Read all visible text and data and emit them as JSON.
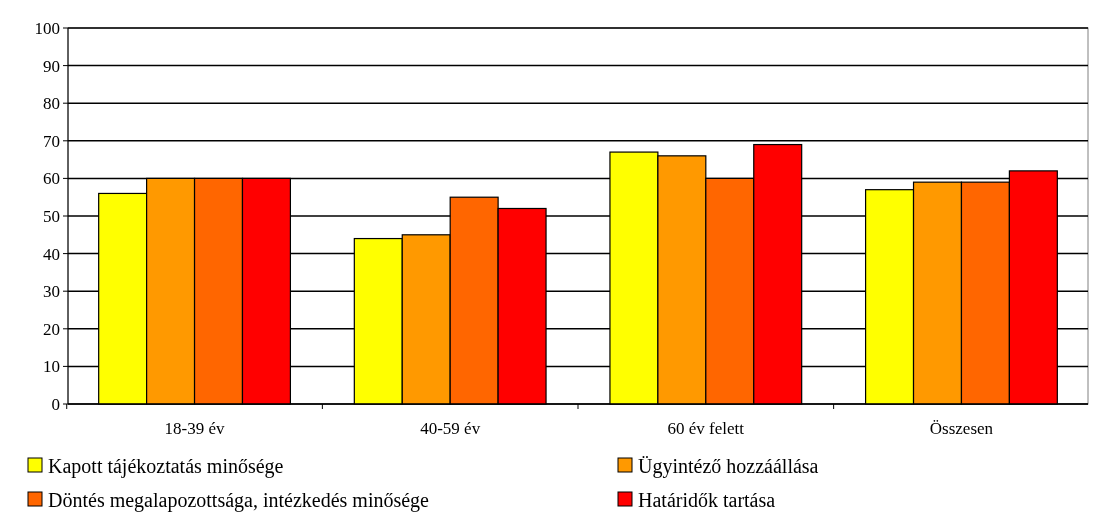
{
  "chart_data": {
    "type": "bar",
    "categories": [
      "18-39 év",
      "40-59 év",
      "60 év felett",
      "Összesen"
    ],
    "series": [
      {
        "name": "Kapott tájékoztatás minősége",
        "color": "#ffff00",
        "values": [
          56,
          44,
          67,
          57
        ]
      },
      {
        "name": "Ügyintéző hozzáállása",
        "color": "#ff9900",
        "values": [
          60,
          45,
          66,
          59
        ]
      },
      {
        "name": "Döntés megalapozottsága, intézkedés minősége",
        "color": "#ff6600",
        "values": [
          60,
          55,
          60,
          59
        ]
      },
      {
        "name": "Határidők tartása",
        "color": "#ff0000",
        "values": [
          60,
          52,
          69,
          62
        ]
      }
    ],
    "ylim": [
      0,
      100
    ],
    "yticks": [
      0,
      10,
      20,
      30,
      40,
      50,
      60,
      70,
      80,
      90,
      100
    ],
    "grid": "y",
    "legend": "bottom"
  }
}
